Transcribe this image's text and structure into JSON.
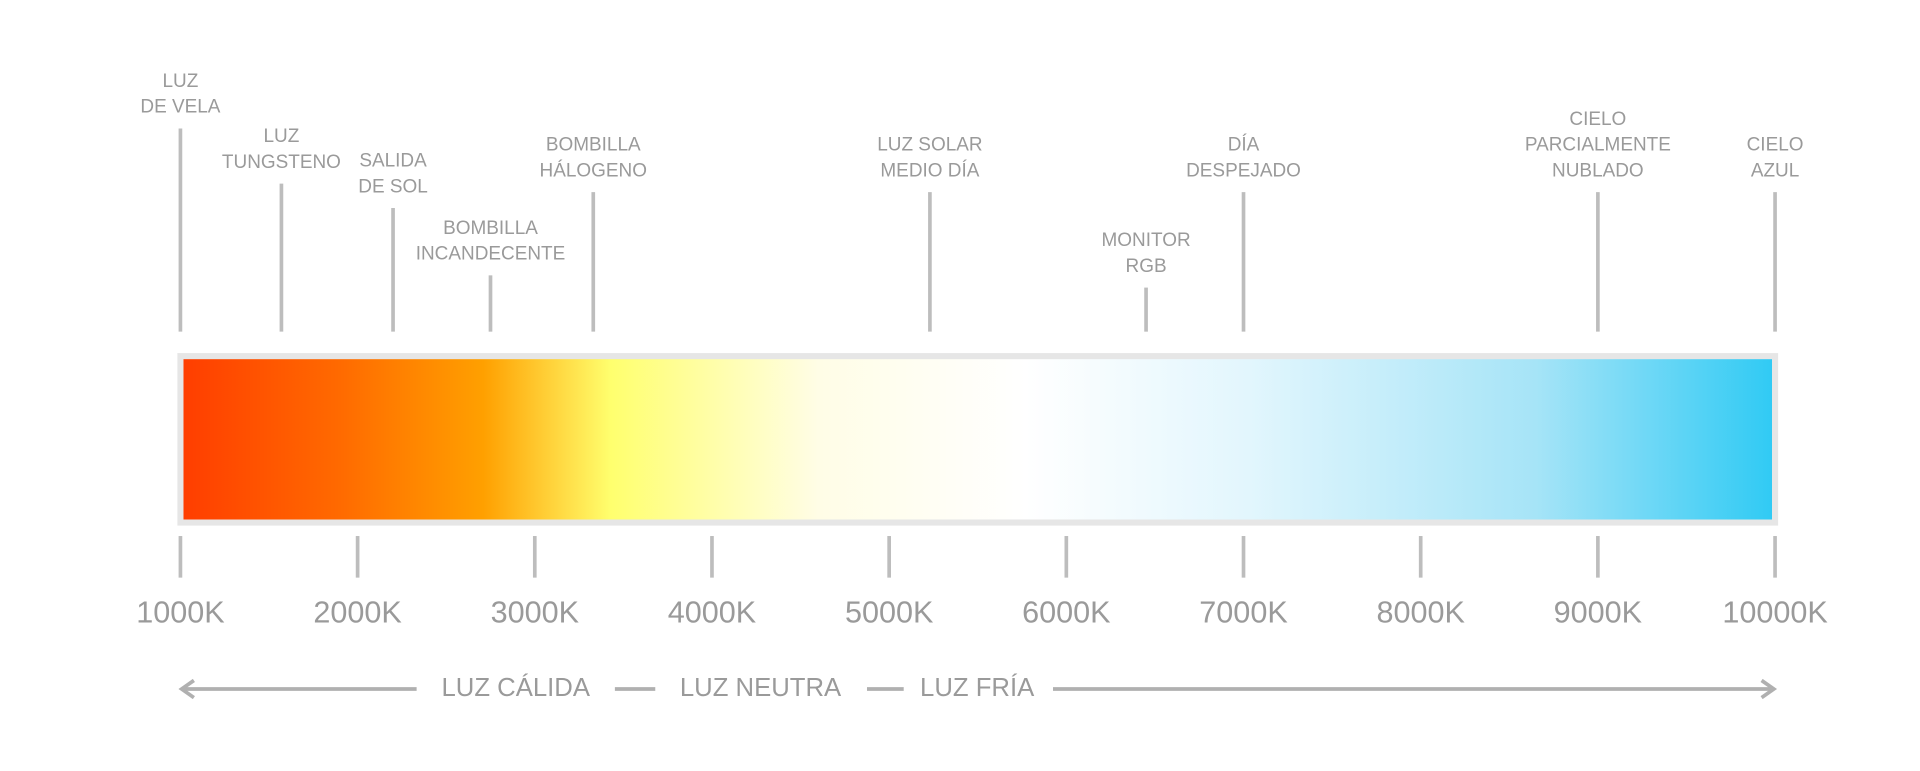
{
  "scale": {
    "xlim": [
      1000,
      10000
    ],
    "xticks": [
      {
        "value": 1000,
        "label": "1000K"
      },
      {
        "value": 2000,
        "label": "2000K"
      },
      {
        "value": 3000,
        "label": "3000K"
      },
      {
        "value": 4000,
        "label": "4000K"
      },
      {
        "value": 5000,
        "label": "5000K"
      },
      {
        "value": 6000,
        "label": "6000K"
      },
      {
        "value": 7000,
        "label": "7000K"
      },
      {
        "value": 8000,
        "label": "8000K"
      },
      {
        "value": 9000,
        "label": "9000K"
      },
      {
        "value": 10000,
        "label": "10000K"
      }
    ],
    "markers": [
      {
        "label": [
          "LUZ",
          "DE VELA"
        ],
        "value": 1000
      },
      {
        "label": [
          "LUZ",
          "TUNGSTENO"
        ],
        "value": 1570
      },
      {
        "label": [
          "SALIDA",
          "DE SOL"
        ],
        "value": 2200
      },
      {
        "label": [
          "BOMBILLA",
          "INCANDECENTE"
        ],
        "value": 2750
      },
      {
        "label": [
          "BOMBILLA",
          "HÁLOGENO"
        ],
        "value": 3330
      },
      {
        "label": [
          "LUZ SOLAR",
          "MEDIO DÍA"
        ],
        "value": 5230
      },
      {
        "label": [
          "MONITOR",
          "RGB"
        ],
        "value": 6450
      },
      {
        "label": [
          "DÍA",
          "DESPEJADO"
        ],
        "value": 7000
      },
      {
        "label": [
          "CIELO",
          "PARCIALMENTE",
          "NUBLADO"
        ],
        "value": 9000
      },
      {
        "label": [
          "CIELO",
          "AZUL"
        ],
        "value": 10000
      }
    ]
  },
  "bands": [
    "LUZ CÁLIDA",
    "LUZ NEUTRA",
    "LUZ FRÍA"
  ]
}
